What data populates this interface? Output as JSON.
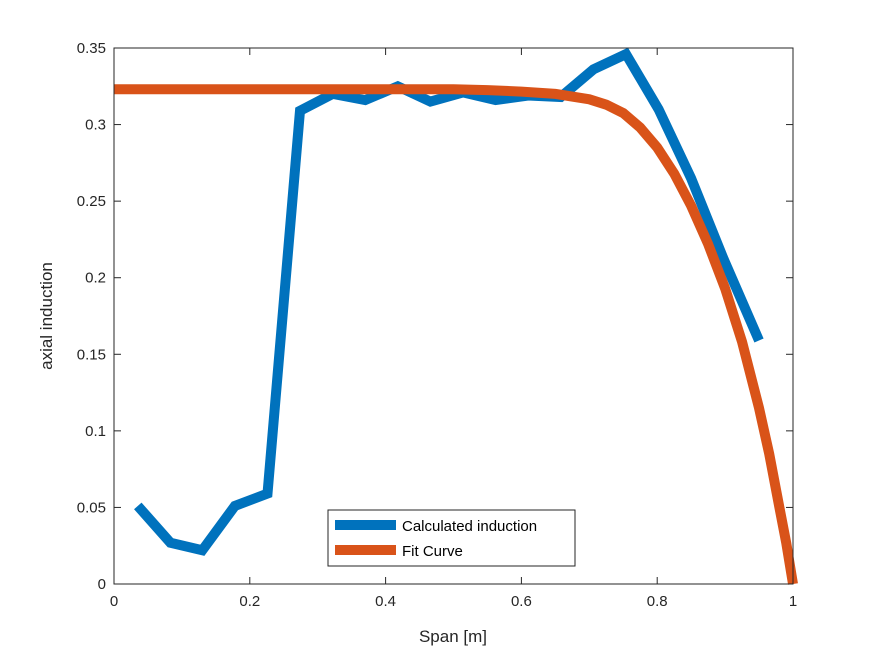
{
  "chart_data": {
    "type": "line",
    "title": "",
    "xlabel": "Span [m]",
    "ylabel": "axial induction",
    "xlim": [
      0,
      1
    ],
    "ylim": [
      0,
      0.35
    ],
    "xticks": [
      0,
      0.2,
      0.4,
      0.6,
      0.8,
      1
    ],
    "xtick_labels": [
      "0",
      "0.2",
      "0.4",
      "0.6",
      "0.8",
      "1"
    ],
    "yticks": [
      0,
      0.05,
      0.1,
      0.15,
      0.2,
      0.25,
      0.3,
      0.35
    ],
    "ytick_labels": [
      "0",
      "0.05",
      "0.1",
      "0.15",
      "0.2",
      "0.25",
      "0.3",
      "0.35"
    ],
    "grid": false,
    "legend_position": "bottom-center",
    "series": [
      {
        "name": "Calculated induction",
        "color": "#0072BD",
        "x": [
          0.035,
          0.083,
          0.13,
          0.178,
          0.226,
          0.274,
          0.322,
          0.37,
          0.418,
          0.466,
          0.514,
          0.562,
          0.61,
          0.658,
          0.706,
          0.754,
          0.802,
          0.85,
          0.898,
          0.95
        ],
        "y": [
          0.051,
          0.027,
          0.022,
          0.051,
          0.059,
          0.309,
          0.32,
          0.316,
          0.325,
          0.315,
          0.321,
          0.316,
          0.319,
          0.318,
          0.336,
          0.346,
          0.31,
          0.265,
          0.212,
          0.159
        ]
      },
      {
        "name": "Fit Curve",
        "color": "#D95319",
        "x": [
          0,
          0.1,
          0.2,
          0.3,
          0.4,
          0.5,
          0.55,
          0.6,
          0.65,
          0.7,
          0.725,
          0.75,
          0.775,
          0.8,
          0.825,
          0.85,
          0.875,
          0.9,
          0.925,
          0.95,
          0.965,
          0.98,
          0.99,
          1.0
        ],
        "y": [
          0.323,
          0.323,
          0.323,
          0.323,
          0.323,
          0.323,
          0.3225,
          0.3215,
          0.32,
          0.3165,
          0.313,
          0.3075,
          0.298,
          0.285,
          0.268,
          0.247,
          0.222,
          0.193,
          0.158,
          0.115,
          0.085,
          0.05,
          0.027,
          0.0
        ]
      }
    ]
  }
}
